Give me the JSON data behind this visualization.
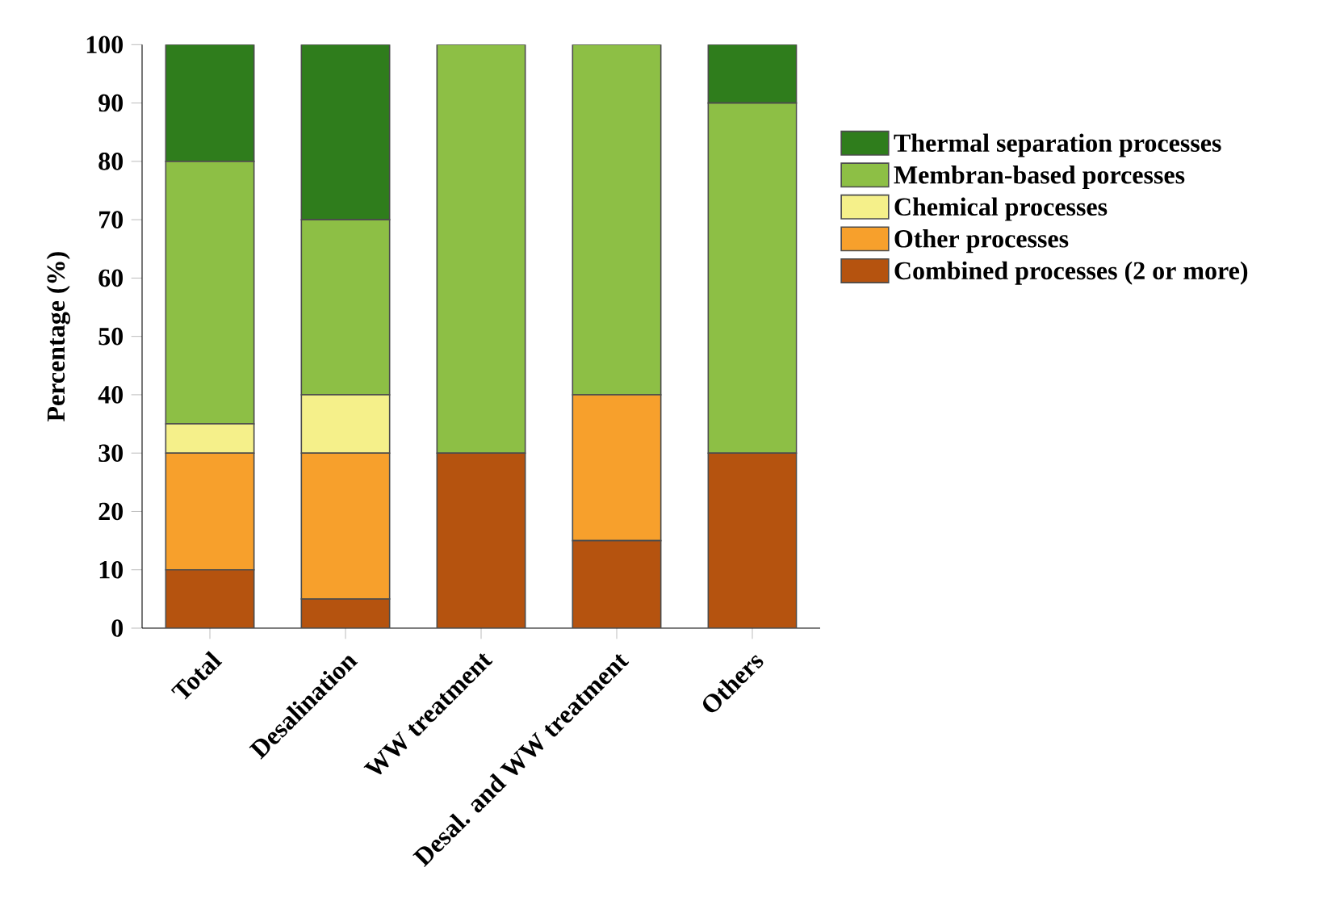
{
  "chart_data": {
    "type": "bar",
    "stacked": true,
    "ylabel": "Percentage (%)",
    "categories": [
      "Total",
      "Desalination",
      "WW treatment",
      "Desal. and WW treatment",
      "Others"
    ],
    "ylim": [
      0,
      100
    ],
    "yticks": [
      0,
      10,
      20,
      30,
      40,
      50,
      60,
      70,
      80,
      90,
      100
    ],
    "legend": "right",
    "grid": false,
    "series": [
      {
        "name": "Combined processes (2 or more)",
        "color": "#b5530f",
        "values": [
          10,
          5,
          30,
          15,
          30
        ]
      },
      {
        "name": "Other processes",
        "color": "#f7a02c",
        "values": [
          20,
          25,
          0,
          25,
          0
        ]
      },
      {
        "name": "Chemical processes",
        "color": "#f5f08a",
        "values": [
          5,
          10,
          0,
          0,
          0
        ]
      },
      {
        "name": "Membran-based porcesses",
        "color": "#8dbf45",
        "values": [
          45,
          30,
          70,
          60,
          60
        ]
      },
      {
        "name": "Thermal separation processes",
        "color": "#2f7d1c",
        "values": [
          20,
          30,
          0,
          0,
          10
        ]
      }
    ]
  }
}
